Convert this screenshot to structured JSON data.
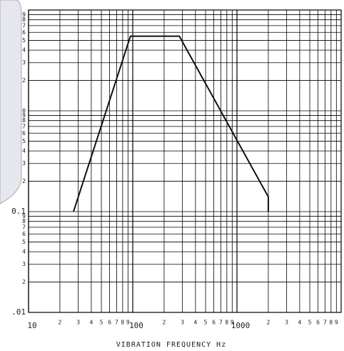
{
  "chart_data": {
    "type": "line",
    "x_label": "VIBRATION FREQUENCY Hz",
    "log_x": true,
    "log_y": true,
    "grid": true,
    "x": [
      27,
      95,
      280,
      2000,
      2000
    ],
    "series": [
      {
        "color": "#111111",
        "values": [
          0.1,
          5.5,
          5.5,
          0.14,
          0.1
        ]
      }
    ],
    "xlim": [
      10,
      10000
    ],
    "ylim": [
      0.01,
      10
    ],
    "xticks": [
      10,
      {
        "value": 20,
        "label": "2"
      },
      {
        "value": 30,
        "label": "3"
      },
      {
        "value": 40,
        "label": "4"
      },
      {
        "value": 50,
        "label": "5"
      },
      {
        "value": 60,
        "label": "6"
      },
      {
        "value": 70,
        "label": "7"
      },
      {
        "value": 80,
        "label": "8"
      },
      {
        "value": 90,
        "label": "9"
      },
      100,
      {
        "value": 200,
        "label": "2"
      },
      {
        "value": 300,
        "label": "3"
      },
      {
        "value": 400,
        "label": "4"
      },
      {
        "value": 500,
        "label": "5"
      },
      {
        "value": 600,
        "label": "6"
      },
      {
        "value": 700,
        "label": "7"
      },
      {
        "value": 800,
        "label": "8"
      },
      {
        "value": 900,
        "label": "9"
      },
      1000,
      {
        "value": 2000,
        "label": "2"
      },
      {
        "value": 3000,
        "label": "3"
      },
      {
        "value": 4000,
        "label": "4"
      },
      {
        "value": 5000,
        "label": "5"
      },
      {
        "value": 6000,
        "label": "6"
      },
      {
        "value": 7000,
        "label": "7"
      },
      {
        "value": 8000,
        "label": "8"
      },
      {
        "value": 9000,
        "label": "9"
      }
    ],
    "yticks": [
      {
        "value": 0.01,
        "label": ".01"
      },
      {
        "value": 0.02,
        "label": "2"
      },
      {
        "value": 0.03,
        "label": "3"
      },
      {
        "value": 0.04,
        "label": "4"
      },
      {
        "value": 0.05,
        "label": "5"
      },
      {
        "value": 0.06,
        "label": "6"
      },
      {
        "value": 0.07,
        "label": "7"
      },
      {
        "value": 0.08,
        "label": "8"
      },
      {
        "value": 0.09,
        "label": "9"
      },
      0.1,
      {
        "value": 0.2,
        "label": "2"
      },
      {
        "value": 0.3,
        "label": "3"
      },
      {
        "value": 0.4,
        "label": "4"
      },
      {
        "value": 0.5,
        "label": "5"
      },
      {
        "value": 0.6,
        "label": "6"
      },
      {
        "value": 0.7,
        "label": "7"
      },
      {
        "value": 0.8,
        "label": "8"
      },
      {
        "value": 0.9,
        "label": "9"
      },
      {
        "value": 1,
        "label": "0"
      },
      {
        "value": 2,
        "label": "2"
      },
      {
        "value": 3,
        "label": "3"
      },
      {
        "value": 4,
        "label": "4"
      },
      {
        "value": 5,
        "label": "5"
      },
      {
        "value": 6,
        "label": "6"
      },
      {
        "value": 7,
        "label": "7"
      },
      {
        "value": 8,
        "label": "8"
      },
      {
        "value": 9,
        "label": "9"
      }
    ]
  }
}
